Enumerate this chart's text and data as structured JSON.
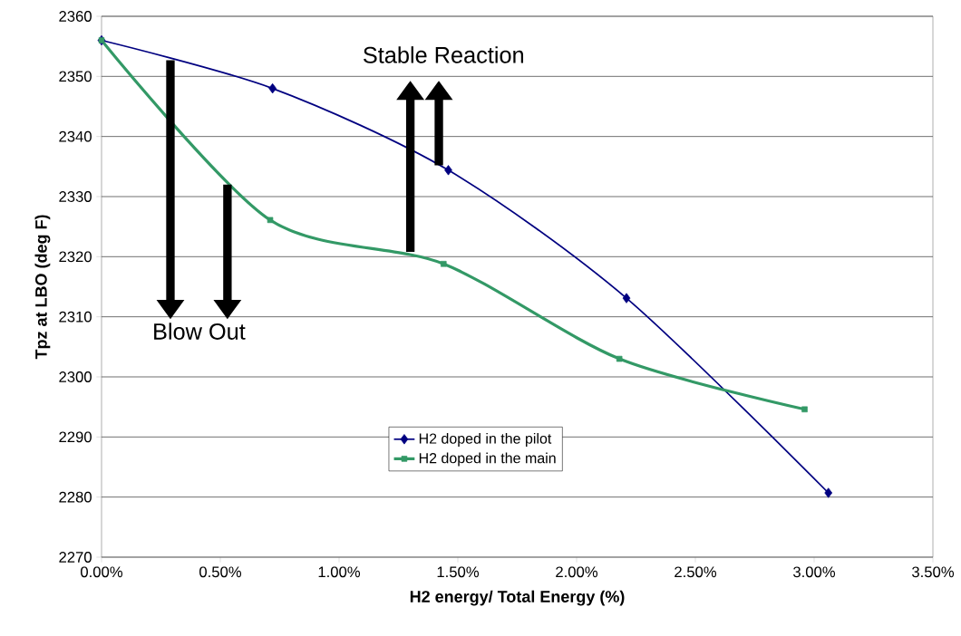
{
  "chart_data": {
    "type": "line",
    "xlabel": "H2 energy/ Total Energy (%)",
    "ylabel": "Tpz at LBO (deg F)",
    "series": [
      {
        "name": "H2 doped in the pilot",
        "color": "#000080",
        "marker": "diamond",
        "x": [
          0,
          0.72,
          1.46,
          2.21,
          3.06
        ],
        "values": [
          2356,
          2348,
          2334.4,
          2313.1,
          2280.7
        ]
      },
      {
        "name": "H2 doped in the main",
        "color": "#339966",
        "marker": "square",
        "x": [
          0,
          0.71,
          1.44,
          2.18,
          2.96
        ],
        "values": [
          2356,
          2326.1,
          2318.8,
          2303,
          2294.6
        ]
      }
    ],
    "xlim": [
      0,
      3.5
    ],
    "ylim": [
      2270,
      2360
    ],
    "xticks": [
      {
        "value": 0,
        "label": "0.00%"
      },
      {
        "value": 0.5,
        "label": "0.50%"
      },
      {
        "value": 1,
        "label": "1.00%"
      },
      {
        "value": 1.5,
        "label": "1.50%"
      },
      {
        "value": 2,
        "label": "2.00%"
      },
      {
        "value": 2.5,
        "label": "2.50%"
      },
      {
        "value": 3,
        "label": "3.00%"
      },
      {
        "value": 3.5,
        "label": "3.50%"
      }
    ],
    "yticks": [
      2270,
      2280,
      2290,
      2300,
      2310,
      2320,
      2330,
      2340,
      2350,
      2360
    ],
    "grid": "y",
    "legend": "bottom",
    "line_style": "solid",
    "annotations": [
      "Stable Reaction",
      "Blow Out"
    ]
  }
}
